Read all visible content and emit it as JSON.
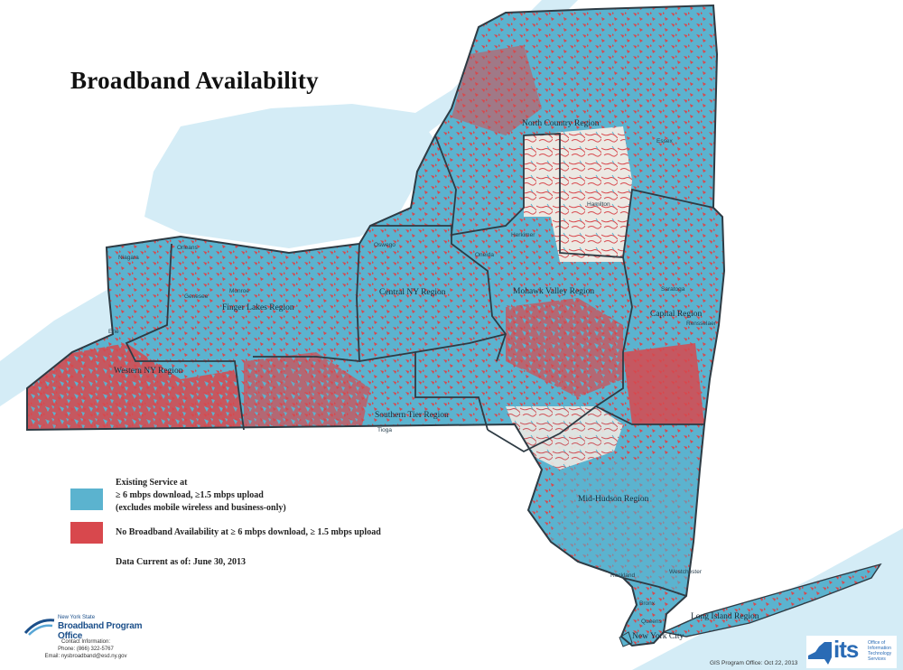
{
  "title": "Broadband Availability",
  "legend": {
    "existing_line1": "Existing Service at",
    "existing_line2": "≥ 6 mbps download, ≥1.5 mbps upload",
    "existing_line3": "(excludes mobile wireless and business-only)",
    "none_label": "No Broadband Availability at ≥ 6 mbps download, ≥ 1.5 mbps upload",
    "data_current": "Data Current as of: June 30, 2013",
    "colors": {
      "existing": "#5bb3cf",
      "none": "#d8484d",
      "unpopulated": "#ece9e3",
      "water": "#d4ecf6"
    }
  },
  "regions": [
    "North Country Region",
    "Mohawk Valley Region",
    "Capital Region",
    "Central NY Region",
    "Finger Lakes Region",
    "Western NY Region",
    "Southern Tier Region",
    "Mid-Hudson Region",
    "Long Island Region",
    "New York City"
  ],
  "counties": [
    "Essex",
    "Hamilton",
    "Herkimer",
    "Oswego",
    "Oneida",
    "Niagara",
    "Orleans",
    "Genesee",
    "Monroe",
    "Saratoga",
    "Rensselaer",
    "Erie",
    "Tioga",
    "Rockland",
    "Westchester",
    "Bronx",
    "Queens"
  ],
  "footer": {
    "bpo_small": "New York State",
    "bpo_big": "Broadband Program Office",
    "contact_line1": "Contact Information:",
    "contact_line2": "Phone: (866) 322-5767",
    "contact_line3": "Email: nysbroadband@esd.ny.gov",
    "gis": "GIS Program Office: Oct 22, 2013",
    "its_logo": "its",
    "its_sub": "Office of Information Technology Services"
  }
}
